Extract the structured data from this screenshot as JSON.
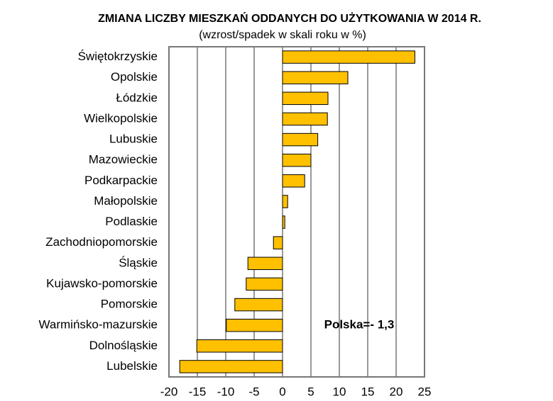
{
  "chart_data": {
    "type": "bar",
    "orientation": "horizontal",
    "title": "ZMIANA LICZBY MIESZKAŃ  ODDANYCH  DO UŻYTKOWANIA W  2014 R.",
    "subtitle": "(wzrost/spadek w skali roku w %)",
    "annotation": "Polska=- 1,3",
    "categories": [
      "Świętokrzyskie",
      "Opolskie",
      "Łódzkie",
      "Wielkopolskie",
      "Lubuskie",
      "Mazowieckie",
      "Podkarpackie",
      "Małopolskie",
      "Podlaskie",
      "Zachodniopomorskie",
      "Śląskie",
      "Kujawsko-pomorskie",
      "Pomorskie",
      "Warmińsko-mazurskie",
      "Dolnośląskie",
      "Lubelskie"
    ],
    "values": [
      23.3,
      11.5,
      8.0,
      7.9,
      6.2,
      5.0,
      3.9,
      0.9,
      0.4,
      -1.6,
      -6.1,
      -6.4,
      -8.4,
      -9.9,
      -15.1,
      -18.1
    ],
    "color": "#ffc000",
    "xlim": [
      -20,
      25
    ],
    "xticks": [
      -20,
      -15,
      -10,
      -5,
      0,
      5,
      10,
      15,
      20,
      25
    ],
    "grid": true
  }
}
